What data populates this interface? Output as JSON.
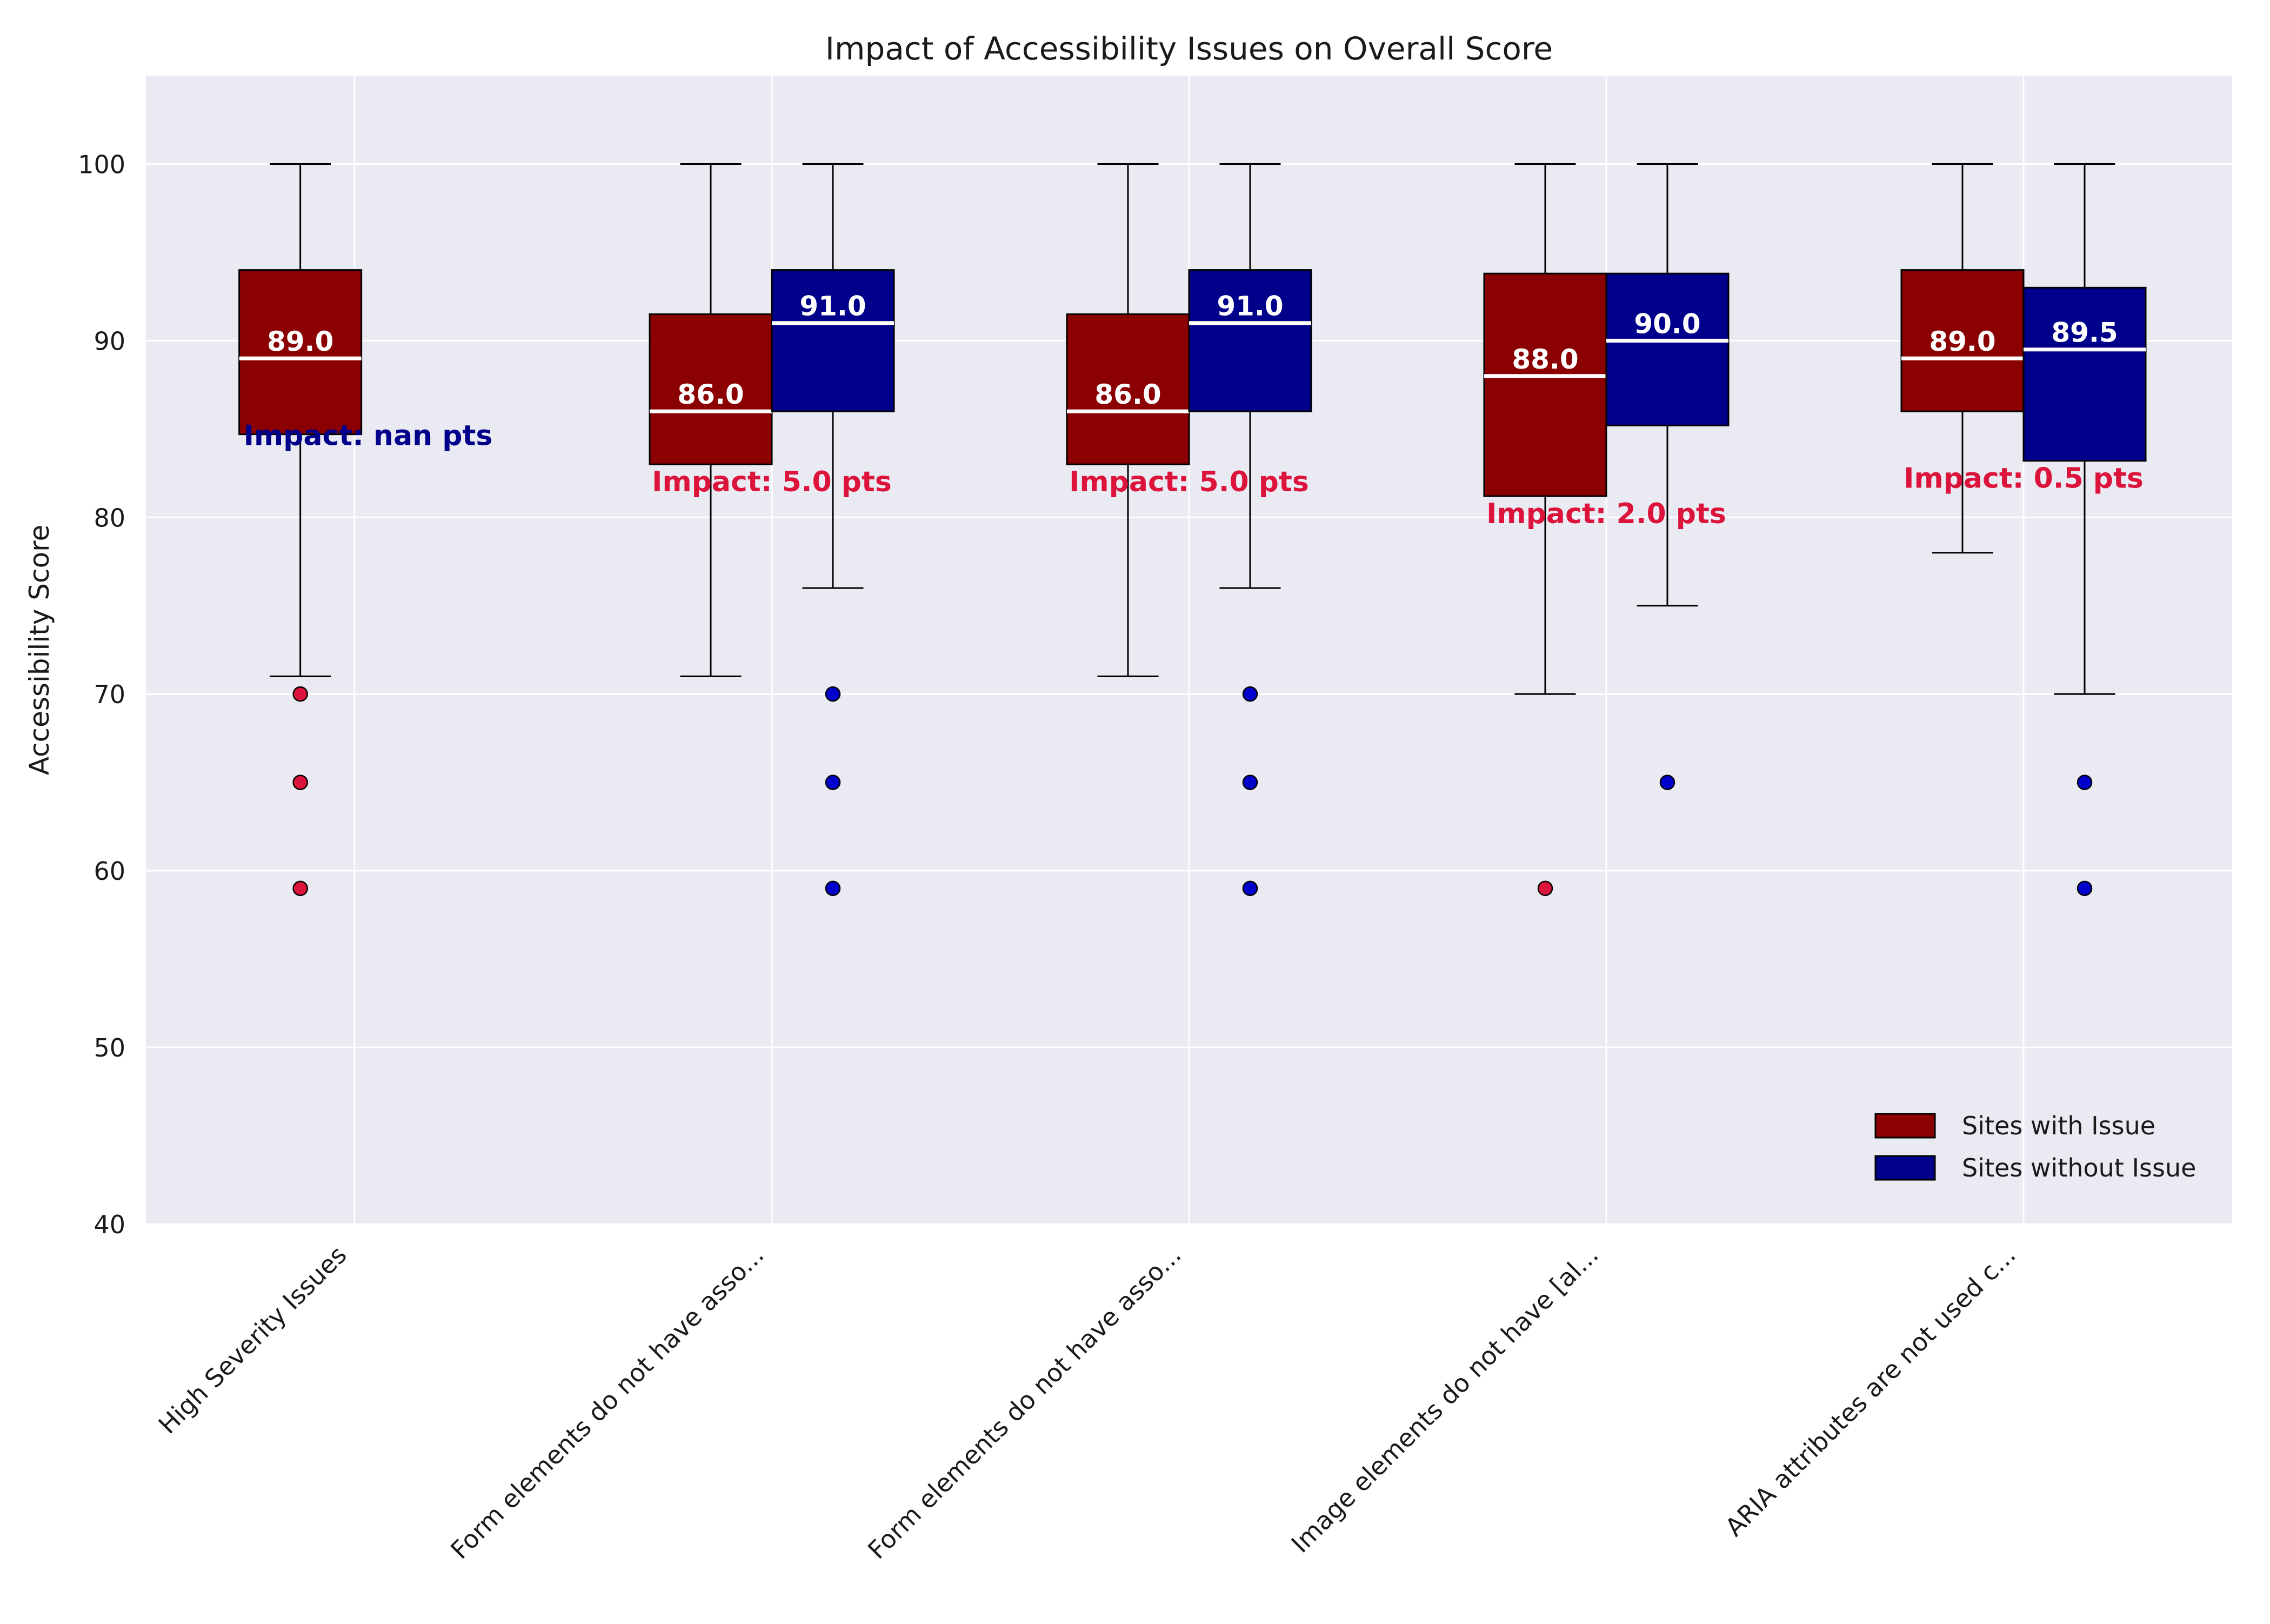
{
  "chart_data": {
    "type": "boxplot",
    "title": "Impact of Accessibility Issues on Overall Score",
    "xlabel": "",
    "ylabel": "Accessibility Score",
    "ylim": [
      40,
      105
    ],
    "yticks": [
      40,
      50,
      60,
      70,
      80,
      90,
      100
    ],
    "grid": true,
    "legend_position": "lower-right",
    "colors": {
      "with_issue": "#8b0000",
      "without_issue": "#00008b",
      "with_issue_outlier": "#dc143c",
      "without_issue_outlier": "#0000cd",
      "impact_positive": "#dc143c",
      "impact_nan": "#00008b",
      "plot_bg": "#eaeaf2",
      "grid": "#ffffff"
    },
    "series": [
      {
        "name": "Sites with Issue",
        "key": "with_issue"
      },
      {
        "name": "Sites without Issue",
        "key": "without_issue"
      }
    ],
    "categories": [
      {
        "label": "High Severity Issues",
        "impact_text": "Impact: nan pts",
        "impact_kind": "nan",
        "with_issue": {
          "whislo": 71,
          "q1": 84.7,
          "med": 89.0,
          "q3": 94,
          "whishi": 100,
          "fliers": [
            70,
            65,
            59
          ],
          "median_label": "89.0"
        },
        "without_issue": null
      },
      {
        "label": "Form elements do not have asso...",
        "impact_text": "Impact: 5.0 pts",
        "impact_kind": "positive",
        "with_issue": {
          "whislo": 71,
          "q1": 83,
          "med": 86.0,
          "q3": 91.5,
          "whishi": 100,
          "fliers": [],
          "median_label": "86.0"
        },
        "without_issue": {
          "whislo": 76,
          "q1": 86,
          "med": 91.0,
          "q3": 94,
          "whishi": 100,
          "fliers": [
            70,
            65,
            59
          ],
          "median_label": "91.0"
        }
      },
      {
        "label": "Form elements do not have asso...",
        "impact_text": "Impact: 5.0 pts",
        "impact_kind": "positive",
        "with_issue": {
          "whislo": 71,
          "q1": 83,
          "med": 86.0,
          "q3": 91.5,
          "whishi": 100,
          "fliers": [],
          "median_label": "86.0"
        },
        "without_issue": {
          "whislo": 76,
          "q1": 86,
          "med": 91.0,
          "q3": 94,
          "whishi": 100,
          "fliers": [
            70,
            65,
            59
          ],
          "median_label": "91.0"
        }
      },
      {
        "label": "Image elements do not have [al...",
        "impact_text": "Impact: 2.0 pts",
        "impact_kind": "positive",
        "with_issue": {
          "whislo": 70,
          "q1": 81.2,
          "med": 88.0,
          "q3": 93.8,
          "whishi": 100,
          "fliers": [
            59
          ],
          "median_label": "88.0"
        },
        "without_issue": {
          "whislo": 75,
          "q1": 85.2,
          "med": 90.0,
          "q3": 93.8,
          "whishi": 100,
          "fliers": [
            65
          ],
          "median_label": "90.0"
        }
      },
      {
        "label": "ARIA attributes are not used c...",
        "impact_text": "Impact: 0.5 pts",
        "impact_kind": "positive",
        "with_issue": {
          "whislo": 78,
          "q1": 86,
          "med": 89.0,
          "q3": 94,
          "whishi": 100,
          "fliers": [],
          "median_label": "89.0"
        },
        "without_issue": {
          "whislo": 70,
          "q1": 83.2,
          "med": 89.5,
          "q3": 93,
          "whishi": 100,
          "fliers": [
            65,
            59
          ],
          "median_label": "89.5"
        }
      }
    ]
  }
}
